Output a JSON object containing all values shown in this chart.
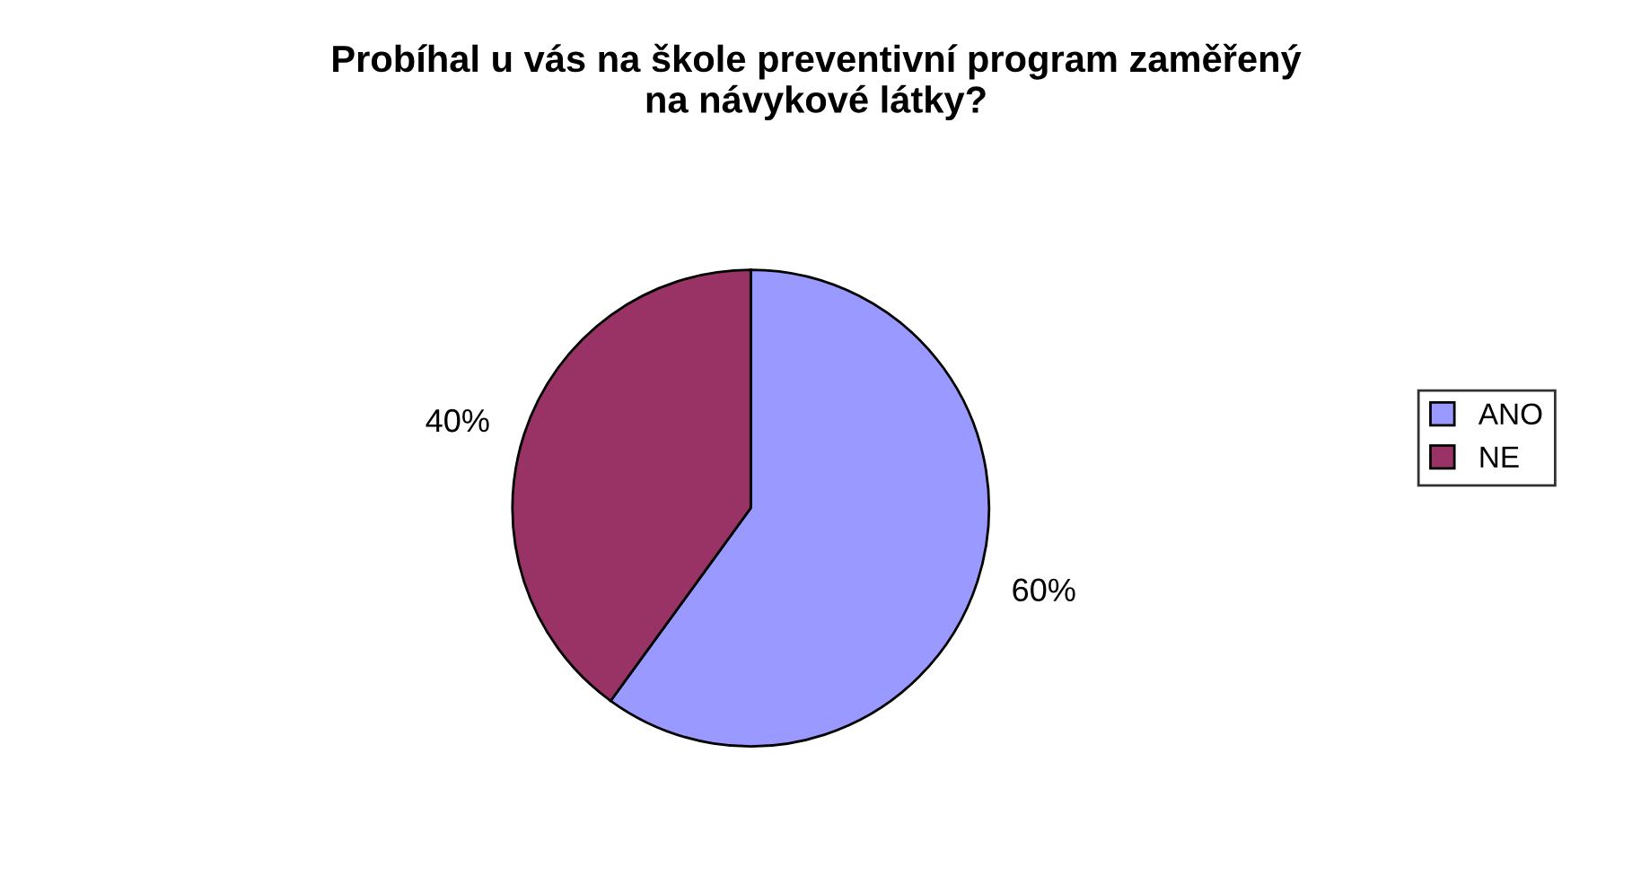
{
  "chart_data": {
    "type": "pie",
    "title": "Probíhal u vás na škole preventivní program zaměřený\nna návykové látky?",
    "categories": [
      "ANO",
      "NE"
    ],
    "values": [
      60,
      40
    ],
    "colors": [
      "#9999ff",
      "#993366"
    ],
    "value_labels": [
      "60%",
      "40%"
    ],
    "legend": "right"
  }
}
